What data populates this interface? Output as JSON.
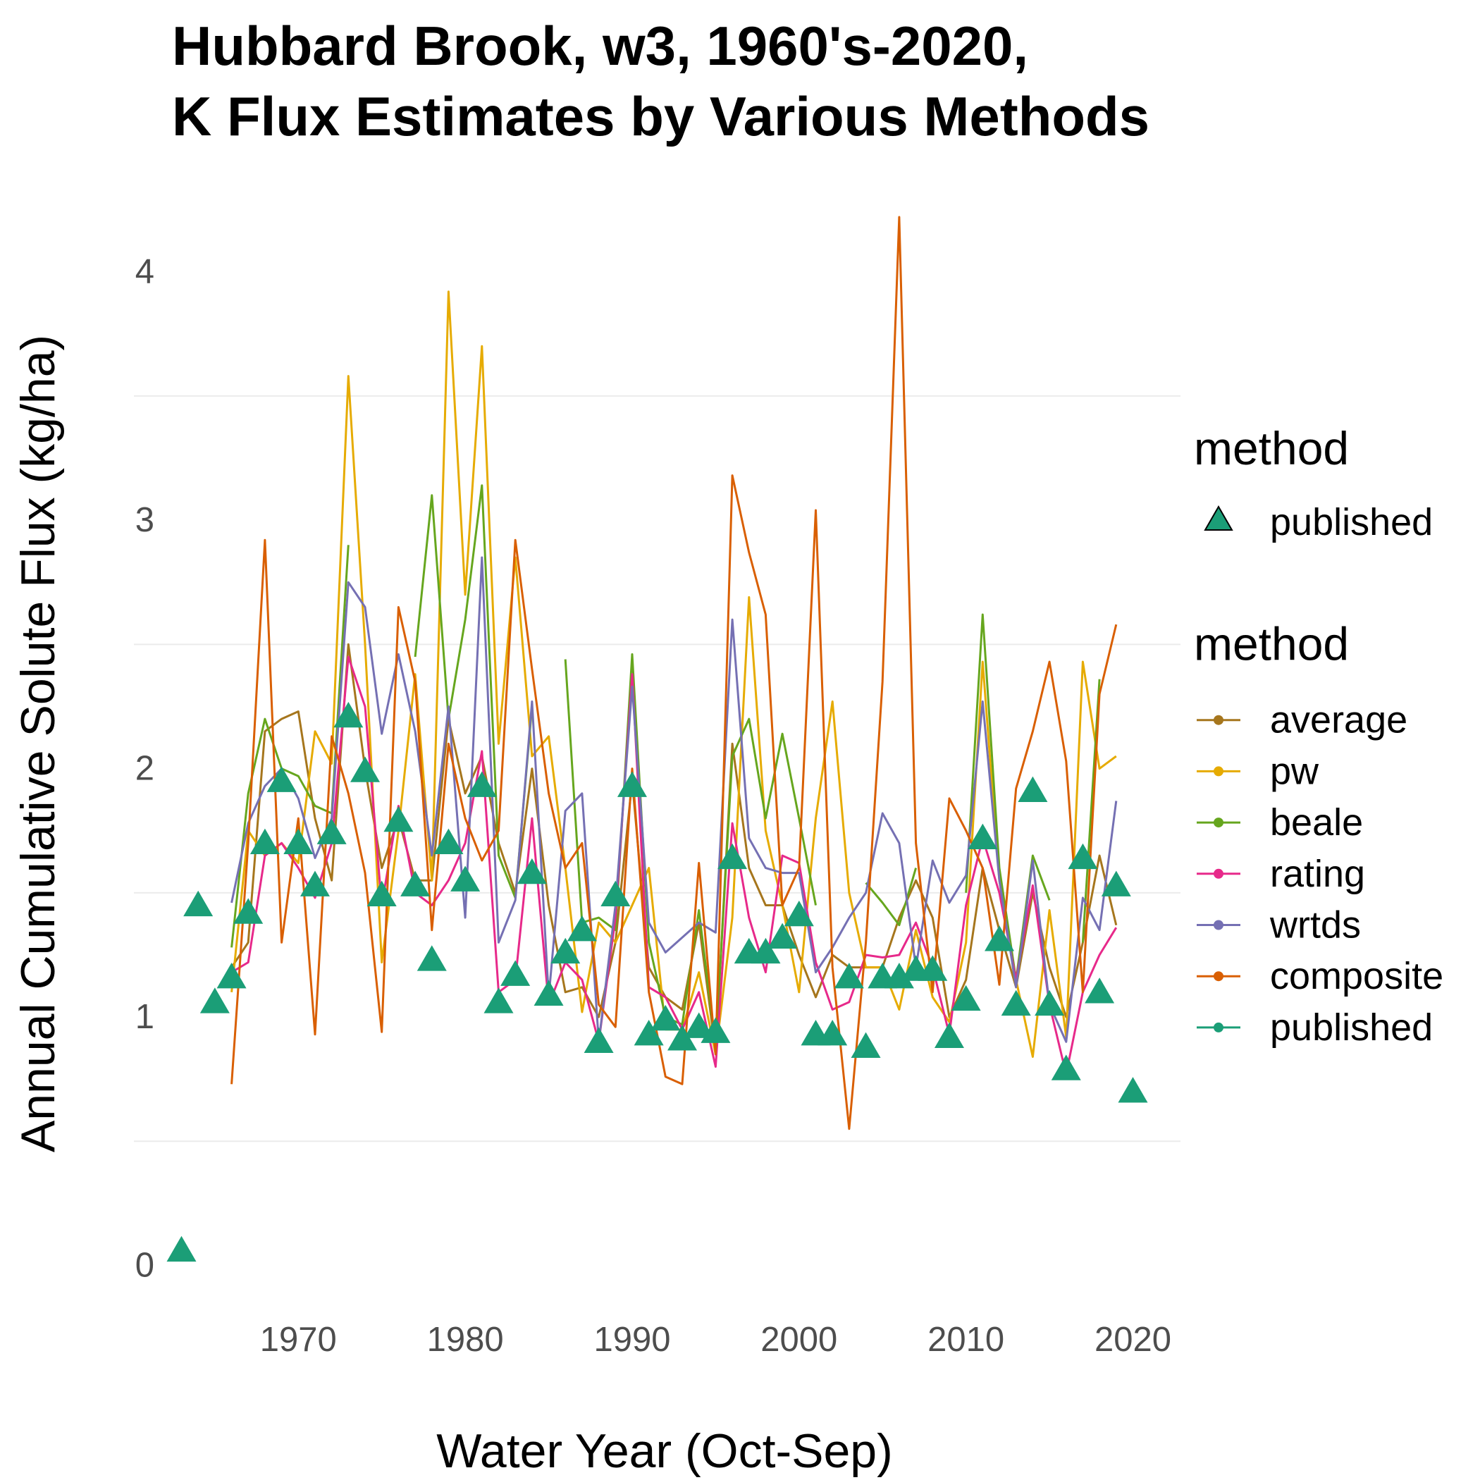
{
  "chart_data": {
    "type": "line",
    "title": [
      "Hubbard Brook, w3, 1960's-2020,",
      "K Flux Estimates by Various Methods"
    ],
    "x_label": "Water Year (Oct-Sep)",
    "y_label": "Annual Cumulative Solute Flux (kg/ha)",
    "xlim": [
      1960.15,
      2022.85
    ],
    "xticks": [
      1970,
      1980,
      1990,
      2000,
      2010,
      2020
    ],
    "ylim": [
      -0.16,
      4.43
    ],
    "yticks": [
      0,
      1,
      2,
      3,
      4
    ],
    "y_minor_grid": [
      0.5,
      1.5,
      2.5,
      3.5
    ],
    "grid": true,
    "line_x": [
      1966,
      1967,
      1968,
      1969,
      1970,
      1971,
      1972,
      1973,
      1974,
      1975,
      1976,
      1977,
      1978,
      1979,
      1980,
      1981,
      1982,
      1983,
      1984,
      1985,
      1986,
      1987,
      1988,
      1989,
      1990,
      1991,
      1992,
      1993,
      1994,
      1995,
      1996,
      1997,
      1998,
      1999,
      2000,
      2001,
      2002,
      2003,
      2004,
      2005,
      2006,
      2007,
      2008,
      2009,
      2010,
      2011,
      2012,
      2013,
      2014,
      2015,
      2016,
      2017,
      2018,
      2019
    ],
    "series": [
      {
        "name": "average",
        "color": "#a6761d",
        "geom": "line",
        "values": [
          1.2,
          1.3,
          2.15,
          2.2,
          2.23,
          1.8,
          1.55,
          2.5,
          2.0,
          1.6,
          1.8,
          1.55,
          1.55,
          2.2,
          1.9,
          2.05,
          1.7,
          1.5,
          2.0,
          1.45,
          1.1,
          1.12,
          1.0,
          1.3,
          1.95,
          1.2,
          1.08,
          1.03,
          1.38,
          0.86,
          2.1,
          1.6,
          1.45,
          1.45,
          1.25,
          1.08,
          1.25,
          1.2,
          1.2,
          1.2,
          1.4,
          1.55,
          1.4,
          1.0,
          1.15,
          1.6,
          1.35,
          1.12,
          1.5,
          1.2,
          1.0,
          1.3,
          1.65,
          1.37
        ]
      },
      {
        "name": "pw",
        "color": "#e6ab02",
        "geom": "line",
        "values": [
          1.1,
          1.75,
          1.65,
          1.7,
          1.62,
          2.15,
          2.02,
          3.58,
          2.5,
          1.22,
          1.75,
          2.38,
          1.55,
          3.92,
          2.7,
          3.7,
          2.1,
          2.85,
          2.05,
          2.13,
          1.6,
          1.02,
          1.38,
          1.3,
          1.45,
          1.6,
          0.95,
          0.95,
          1.18,
          0.85,
          1.4,
          2.69,
          1.75,
          1.45,
          1.1,
          1.8,
          2.27,
          1.5,
          1.2,
          1.2,
          1.03,
          1.35,
          1.08,
          0.98,
          1.3,
          2.43,
          1.55,
          1.15,
          0.84,
          1.43,
          0.92,
          2.43,
          2.0,
          2.05
        ]
      },
      {
        "name": "beale",
        "color": "#66a61e",
        "geom": "line",
        "values": [
          1.28,
          1.9,
          2.2,
          2.0,
          1.97,
          1.85,
          1.82,
          2.9,
          null,
          null,
          null,
          2.45,
          3.1,
          2.2,
          2.6,
          3.14,
          1.65,
          1.48,
          2.25,
          null,
          2.44,
          1.38,
          1.4,
          1.35,
          2.46,
          1.3,
          1.0,
          0.97,
          1.43,
          0.88,
          2.05,
          2.2,
          1.8,
          2.14,
          1.8,
          1.45,
          null,
          null,
          1.54,
          1.46,
          1.37,
          1.6,
          null,
          null,
          1.5,
          2.62,
          1.6,
          1.15,
          1.65,
          1.47,
          null,
          1.3,
          2.36,
          null
        ]
      },
      {
        "name": "rating",
        "color": "#e7298a",
        "geom": "line",
        "values": [
          1.18,
          1.22,
          1.65,
          1.7,
          1.6,
          1.48,
          1.7,
          2.45,
          2.25,
          1.45,
          1.85,
          1.5,
          1.45,
          1.55,
          1.7,
          2.07,
          1.1,
          1.15,
          1.8,
          1.05,
          1.22,
          1.15,
          0.9,
          1.4,
          2.38,
          1.12,
          1.08,
          0.95,
          1.1,
          0.8,
          1.78,
          1.4,
          1.18,
          1.65,
          1.62,
          1.22,
          1.03,
          1.06,
          1.25,
          1.24,
          1.25,
          1.38,
          1.2,
          0.93,
          1.45,
          1.72,
          1.5,
          1.15,
          1.53,
          1.05,
          0.77,
          1.1,
          1.25,
          1.36
        ]
      },
      {
        "name": "wrtds",
        "color": "#7570b3",
        "geom": "line",
        "values": [
          1.46,
          1.78,
          1.93,
          2.0,
          1.88,
          1.64,
          1.8,
          2.75,
          2.65,
          2.14,
          2.46,
          2.15,
          1.65,
          2.25,
          1.4,
          2.85,
          1.3,
          1.47,
          2.27,
          1.08,
          1.83,
          1.9,
          0.9,
          1.45,
          2.33,
          1.38,
          1.26,
          1.32,
          1.38,
          1.34,
          2.6,
          1.72,
          1.6,
          1.58,
          1.58,
          1.18,
          1.28,
          1.4,
          1.5,
          1.82,
          1.7,
          1.2,
          1.63,
          1.46,
          1.57,
          2.27,
          1.55,
          1.12,
          1.63,
          1.05,
          0.9,
          1.48,
          1.35,
          1.87
        ]
      },
      {
        "name": "composite",
        "color": "#d95f02",
        "geom": "line",
        "values": [
          0.73,
          1.7,
          2.92,
          1.3,
          1.8,
          0.93,
          2.13,
          1.9,
          1.58,
          0.94,
          2.65,
          2.35,
          1.35,
          2.1,
          1.8,
          1.63,
          1.75,
          2.92,
          2.4,
          1.9,
          1.6,
          1.7,
          1.05,
          0.96,
          2.0,
          1.1,
          0.76,
          0.73,
          1.62,
          0.85,
          3.18,
          2.87,
          2.62,
          1.45,
          1.6,
          3.04,
          1.2,
          0.55,
          1.3,
          2.35,
          4.22,
          1.7,
          1.1,
          1.88,
          1.75,
          1.6,
          1.13,
          1.92,
          2.15,
          2.43,
          2.03,
          1.1,
          2.3,
          2.58
        ]
      },
      {
        "name": "published",
        "color": "#1b9e77",
        "geom": "point",
        "x": [
          1963,
          1964,
          1965,
          1966,
          1967,
          1968,
          1969,
          1970,
          1971,
          1972,
          1973,
          1974,
          1975,
          1976,
          1977,
          1978,
          1979,
          1980,
          1981,
          1982,
          1983,
          1984,
          1985,
          1986,
          1987,
          1988,
          1989,
          1990,
          1991,
          1992,
          1993,
          1994,
          1995,
          1996,
          1997,
          1998,
          1999,
          2000,
          2001,
          2002,
          2003,
          2004,
          2005,
          2006,
          2007,
          2008,
          2009,
          2010,
          2011,
          2012,
          2013,
          2014,
          2015,
          2016,
          2017,
          2018,
          2019,
          2020
        ],
        "values": [
          0.05,
          1.44,
          1.05,
          1.15,
          1.41,
          1.69,
          1.94,
          1.69,
          1.52,
          1.73,
          2.2,
          1.98,
          1.48,
          1.78,
          1.52,
          1.22,
          1.69,
          1.54,
          1.92,
          1.05,
          1.16,
          1.57,
          1.08,
          1.25,
          1.34,
          0.89,
          1.48,
          1.92,
          0.92,
          0.98,
          0.9,
          0.95,
          0.93,
          1.63,
          1.25,
          1.25,
          1.31,
          1.4,
          0.92,
          0.92,
          1.15,
          0.87,
          1.15,
          1.15,
          1.18,
          1.18,
          0.91,
          1.06,
          1.71,
          1.3,
          1.04,
          1.9,
          1.04,
          0.78,
          1.63,
          1.09,
          1.52,
          0.69
        ]
      }
    ],
    "legends": [
      {
        "title": "method",
        "symbol": "triangle",
        "series": [
          6
        ]
      },
      {
        "title": "method",
        "symbol": "line-point",
        "series": [
          0,
          1,
          2,
          3,
          4,
          5,
          6
        ]
      }
    ]
  }
}
